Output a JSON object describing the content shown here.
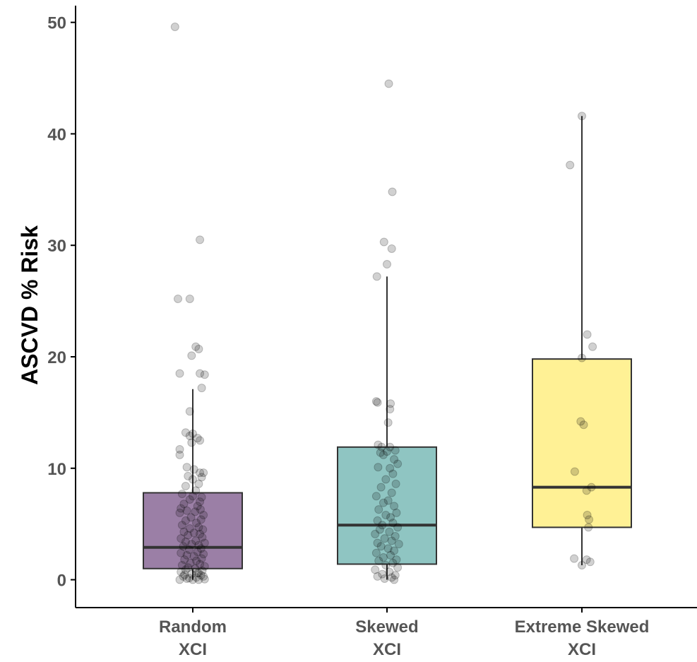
{
  "chart_data": {
    "type": "box",
    "title": "",
    "xlabel": "",
    "ylabel": "ASCVD % Risk",
    "ylim": [
      -2.5,
      51.5
    ],
    "yticks": [
      0,
      10,
      20,
      30,
      40,
      50
    ],
    "grid": false,
    "legend": "none",
    "categories": [
      {
        "line1": "Random",
        "line2": "XCI"
      },
      {
        "line1": "Skewed",
        "line2": "XCI"
      },
      {
        "line1": "Extreme Skewed",
        "line2": "XCI"
      }
    ],
    "series": [
      {
        "color": "#9b7fa6",
        "stats": {
          "whisker_low": 0,
          "q1": 1.0,
          "median": 2.9,
          "q3": 7.8,
          "whisker_high": 17.1
        },
        "points": [
          [
            -0.3,
            49.6
          ],
          [
            0.12,
            30.5
          ],
          [
            -0.25,
            25.2
          ],
          [
            -0.05,
            25.2
          ],
          [
            0.05,
            20.9
          ],
          [
            0.1,
            20.7
          ],
          [
            -0.02,
            20.1
          ],
          [
            -0.22,
            18.5
          ],
          [
            0.12,
            18.5
          ],
          [
            0.2,
            18.4
          ],
          [
            0.15,
            17.2
          ],
          [
            -0.05,
            15.1
          ],
          [
            -0.12,
            13.2
          ],
          [
            0.0,
            13.1
          ],
          [
            -0.05,
            12.9
          ],
          [
            0.08,
            12.7
          ],
          [
            0.12,
            12.5
          ],
          [
            -0.02,
            12.3
          ],
          [
            -0.22,
            11.7
          ],
          [
            -0.22,
            11.2
          ],
          [
            -0.1,
            10.1
          ],
          [
            0.02,
            9.9
          ],
          [
            0.12,
            9.6
          ],
          [
            0.18,
            9.6
          ],
          [
            -0.08,
            9.3
          ],
          [
            0.15,
            9.2
          ],
          [
            0.0,
            9.0
          ],
          [
            0.1,
            8.6
          ],
          [
            -0.12,
            8.4
          ],
          [
            0.05,
            8.0
          ],
          [
            -0.18,
            7.7
          ],
          [
            0.0,
            7.5
          ],
          [
            0.15,
            7.4
          ],
          [
            -0.05,
            7.2
          ],
          [
            0.12,
            7.0
          ],
          [
            -0.15,
            6.8
          ],
          [
            0.08,
            6.6
          ],
          [
            -0.2,
            6.4
          ],
          [
            0.13,
            6.3
          ],
          [
            -0.1,
            6.2
          ],
          [
            0.04,
            6.1
          ],
          [
            -0.22,
            6.0
          ],
          [
            0.18,
            5.8
          ],
          [
            -0.03,
            5.6
          ],
          [
            0.14,
            5.4
          ],
          [
            -0.12,
            5.3
          ],
          [
            0.06,
            5.1
          ],
          [
            -0.18,
            4.9
          ],
          [
            0.1,
            4.7
          ],
          [
            -0.05,
            4.6
          ],
          [
            0.17,
            4.5
          ],
          [
            -0.15,
            4.3
          ],
          [
            0.02,
            4.2
          ],
          [
            0.12,
            4.1
          ],
          [
            -0.08,
            4.0
          ],
          [
            0.16,
            3.8
          ],
          [
            -0.2,
            3.7
          ],
          [
            0.05,
            3.5
          ],
          [
            -0.12,
            3.4
          ],
          [
            0.2,
            3.3
          ],
          [
            -0.02,
            3.2
          ],
          [
            0.1,
            3.1
          ],
          [
            -0.16,
            3.0
          ],
          [
            0.14,
            2.8
          ],
          [
            -0.06,
            2.7
          ],
          [
            0.08,
            2.5
          ],
          [
            -0.2,
            2.4
          ],
          [
            0.18,
            2.3
          ],
          [
            -0.1,
            2.2
          ],
          [
            0.02,
            2.1
          ],
          [
            0.15,
            1.9
          ],
          [
            -0.14,
            1.8
          ],
          [
            0.06,
            1.7
          ],
          [
            -0.04,
            1.5
          ],
          [
            0.12,
            1.4
          ],
          [
            -0.18,
            1.3
          ],
          [
            0.2,
            1.2
          ],
          [
            -0.08,
            1.1
          ],
          [
            0.04,
            1.0
          ],
          [
            -0.12,
            0.9
          ],
          [
            0.16,
            0.8
          ],
          [
            -0.2,
            0.7
          ],
          [
            0.1,
            0.6
          ],
          [
            -0.02,
            0.5
          ],
          [
            0.14,
            0.4
          ],
          [
            -0.16,
            0.3
          ],
          [
            0.06,
            0.2
          ],
          [
            -0.1,
            0.1
          ],
          [
            0.2,
            0.05
          ],
          [
            -0.22,
            0.0
          ],
          [
            0.0,
            0.0
          ],
          [
            0.1,
            0.0
          ],
          [
            -0.06,
            0.15
          ],
          [
            0.18,
            0.3
          ],
          [
            -0.14,
            0.45
          ],
          [
            0.08,
            0.6
          ]
        ]
      },
      {
        "color": "#8fc5c2",
        "stats": {
          "whisker_low": 0,
          "q1": 1.4,
          "median": 4.9,
          "q3": 11.9,
          "whisker_high": 27.2
        },
        "points": [
          [
            0.03,
            44.5
          ],
          [
            0.09,
            34.8
          ],
          [
            -0.05,
            30.3
          ],
          [
            0.08,
            29.7
          ],
          [
            0.0,
            28.3
          ],
          [
            -0.17,
            27.2
          ],
          [
            -0.18,
            16.0
          ],
          [
            -0.16,
            15.9
          ],
          [
            0.06,
            15.8
          ],
          [
            0.05,
            15.3
          ],
          [
            0.02,
            14.1
          ],
          [
            -0.15,
            12.1
          ],
          [
            -0.09,
            11.9
          ],
          [
            0.05,
            11.9
          ],
          [
            0.0,
            11.5
          ],
          [
            0.14,
            11.6
          ],
          [
            -0.11,
            11.4
          ],
          [
            -0.06,
            11.2
          ],
          [
            0.12,
            10.8
          ],
          [
            0.18,
            10.4
          ],
          [
            -0.15,
            10.1
          ],
          [
            0.05,
            10.0
          ],
          [
            0.1,
            9.5
          ],
          [
            -0.02,
            9.0
          ],
          [
            0.15,
            8.6
          ],
          [
            -0.1,
            8.3
          ],
          [
            0.08,
            7.8
          ],
          [
            -0.18,
            7.5
          ],
          [
            0.02,
            7.1
          ],
          [
            -0.06,
            6.9
          ],
          [
            0.12,
            6.6
          ],
          [
            -0.14,
            6.3
          ],
          [
            0.16,
            6.0
          ],
          [
            -0.02,
            5.8
          ],
          [
            0.06,
            5.6
          ],
          [
            -0.16,
            5.3
          ],
          [
            0.1,
            5.1
          ],
          [
            -0.08,
            4.9
          ],
          [
            0.18,
            4.7
          ],
          [
            -0.12,
            4.5
          ],
          [
            0.04,
            4.3
          ],
          [
            -0.2,
            4.1
          ],
          [
            0.14,
            3.9
          ],
          [
            -0.04,
            3.7
          ],
          [
            0.08,
            3.5
          ],
          [
            -0.16,
            3.3
          ],
          [
            0.2,
            3.2
          ],
          [
            -0.1,
            3.0
          ],
          [
            0.02,
            2.8
          ],
          [
            0.12,
            2.6
          ],
          [
            -0.18,
            2.4
          ],
          [
            0.06,
            2.2
          ],
          [
            -0.06,
            2.0
          ],
          [
            0.16,
            1.8
          ],
          [
            -0.14,
            1.7
          ],
          [
            0.1,
            1.5
          ],
          [
            -0.02,
            1.3
          ],
          [
            0.18,
            1.1
          ],
          [
            -0.2,
            0.9
          ],
          [
            0.04,
            0.7
          ],
          [
            -0.08,
            0.5
          ],
          [
            0.14,
            0.4
          ],
          [
            -0.16,
            0.3
          ],
          [
            0.08,
            0.2
          ],
          [
            -0.04,
            0.1
          ],
          [
            0.12,
            0.0
          ]
        ]
      },
      {
        "color": "#fff195",
        "stats": {
          "whisker_low": 1.3,
          "q1": 4.7,
          "median": 8.3,
          "q3": 19.8,
          "whisker_high": 41.6
        },
        "points": [
          [
            0.0,
            41.6
          ],
          [
            -0.2,
            37.2
          ],
          [
            0.09,
            22.0
          ],
          [
            0.18,
            20.9
          ],
          [
            0.0,
            19.9
          ],
          [
            -0.02,
            14.2
          ],
          [
            0.03,
            13.9
          ],
          [
            -0.12,
            9.7
          ],
          [
            0.16,
            8.3
          ],
          [
            0.08,
            8.0
          ],
          [
            0.09,
            5.8
          ],
          [
            0.12,
            5.4
          ],
          [
            0.11,
            4.7
          ],
          [
            -0.13,
            1.9
          ],
          [
            0.08,
            1.8
          ],
          [
            0.14,
            1.6
          ],
          [
            0.0,
            1.3
          ]
        ]
      }
    ]
  }
}
